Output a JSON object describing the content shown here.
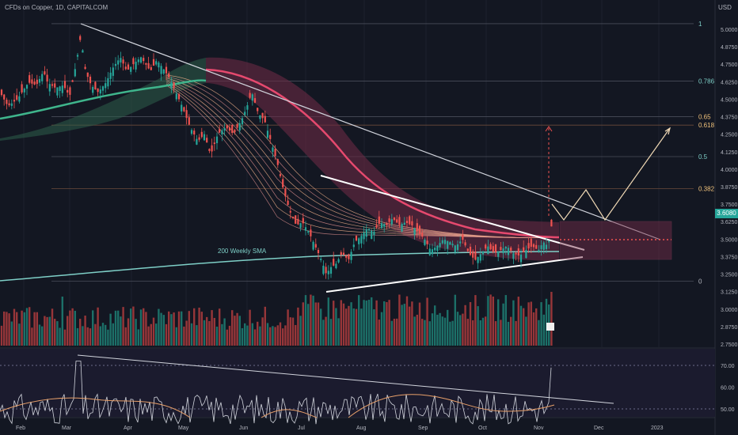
{
  "header": {
    "symbol": "CFDs on Copper, 1D, CAPITALCOM"
  },
  "currency": "USD",
  "last_price": "3.6080",
  "colors": {
    "bg": "#131722",
    "up": "#26a69a",
    "down": "#ef5350",
    "fib": "#5d606b",
    "sma200": "#7ecfc7",
    "label": "#b2b5be",
    "ribbon_top": "#e6496e",
    "price_tag": "#26a69a"
  },
  "chart_data": [
    {
      "type": "candlestick",
      "title": "CFDs on Copper, 1D, CAPITALCOM",
      "x_ticks": [
        "Feb",
        "Mar",
        "Apr",
        "May",
        "Jun",
        "Jul",
        "Aug",
        "Sep",
        "Oct",
        "Nov",
        "Dec",
        "2023"
      ],
      "y_ticks": [
        "5.0000",
        "4.8750",
        "4.7500",
        "4.6250",
        "4.5000",
        "4.3750",
        "4.2500",
        "4.1250",
        "4.0000",
        "3.8750",
        "3.7500",
        "3.6250",
        "3.5000",
        "3.3750",
        "3.2500",
        "3.1250",
        "3.0000",
        "2.8750",
        "2.7500"
      ],
      "ylim": [
        2.72,
        5.18
      ],
      "close_path": [
        [
          0,
          4.55
        ],
        [
          10,
          4.45
        ],
        [
          22,
          4.5
        ],
        [
          36,
          4.62
        ],
        [
          46,
          4.6
        ],
        [
          55,
          4.7
        ],
        [
          60,
          4.62
        ],
        [
          70,
          4.58
        ],
        [
          80,
          4.6
        ],
        [
          88,
          4.52
        ],
        [
          96,
          4.75
        ],
        [
          102,
          4.95
        ],
        [
          108,
          4.7
        ],
        [
          115,
          4.6
        ],
        [
          124,
          4.55
        ],
        [
          134,
          4.62
        ],
        [
          142,
          4.72
        ],
        [
          152,
          4.8
        ],
        [
          160,
          4.7
        ],
        [
          170,
          4.76
        ],
        [
          178,
          4.8
        ],
        [
          190,
          4.7
        ],
        [
          198,
          4.78
        ],
        [
          206,
          4.72
        ],
        [
          214,
          4.65
        ],
        [
          222,
          4.55
        ],
        [
          230,
          4.45
        ],
        [
          240,
          4.3
        ],
        [
          250,
          4.2
        ],
        [
          258,
          4.25
        ],
        [
          266,
          4.1
        ],
        [
          275,
          4.25
        ],
        [
          285,
          4.3
        ],
        [
          295,
          4.25
        ],
        [
          305,
          4.35
        ],
        [
          312,
          4.45
        ],
        [
          318,
          4.55
        ],
        [
          326,
          4.4
        ],
        [
          334,
          4.35
        ],
        [
          342,
          4.2
        ],
        [
          350,
          4.05
        ],
        [
          358,
          3.85
        ],
        [
          366,
          3.7
        ],
        [
          374,
          3.6
        ],
        [
          382,
          3.62
        ],
        [
          390,
          3.55
        ],
        [
          398,
          3.45
        ],
        [
          406,
          3.35
        ],
        [
          412,
          3.25
        ],
        [
          418,
          3.3
        ],
        [
          424,
          3.32
        ],
        [
          432,
          3.4
        ],
        [
          440,
          3.35
        ],
        [
          448,
          3.48
        ],
        [
          456,
          3.52
        ],
        [
          464,
          3.58
        ],
        [
          472,
          3.55
        ],
        [
          480,
          3.62
        ],
        [
          488,
          3.6
        ],
        [
          496,
          3.65
        ],
        [
          504,
          3.6
        ],
        [
          512,
          3.62
        ],
        [
          520,
          3.6
        ],
        [
          528,
          3.55
        ],
        [
          536,
          3.5
        ],
        [
          544,
          3.42
        ],
        [
          552,
          3.45
        ],
        [
          560,
          3.5
        ],
        [
          568,
          3.48
        ],
        [
          576,
          3.45
        ],
        [
          584,
          3.5
        ],
        [
          592,
          3.4
        ],
        [
          600,
          3.35
        ],
        [
          608,
          3.4
        ],
        [
          616,
          3.45
        ],
        [
          624,
          3.4
        ],
        [
          632,
          3.42
        ],
        [
          640,
          3.45
        ],
        [
          648,
          3.4
        ],
        [
          656,
          3.38
        ],
        [
          664,
          3.42
        ],
        [
          672,
          3.45
        ],
        [
          680,
          3.42
        ],
        [
          686,
          3.48
        ],
        [
          692,
          3.45
        ],
        [
          697,
          3.61
        ]
      ],
      "annotations": [
        {
          "label": "1",
          "value": 5.04
        },
        {
          "label": "0.786",
          "value": 4.63
        },
        {
          "label": "0.65",
          "value": 4.375
        },
        {
          "label": "0.618",
          "value": 4.315
        },
        {
          "label": "0.5",
          "value": 4.09
        },
        {
          "label": "0.382",
          "value": 3.86
        },
        {
          "label": "0",
          "value": 3.2
        }
      ],
      "sma_label": "200 Weekly SMA"
    },
    {
      "type": "bar",
      "name": "volume",
      "note": "volume bars under price"
    },
    {
      "type": "line",
      "name": "RSI",
      "y_ticks": [
        "70.00",
        "60.00",
        "50.00"
      ],
      "ylim": [
        44,
        76
      ],
      "guides": [
        70,
        50
      ]
    }
  ]
}
